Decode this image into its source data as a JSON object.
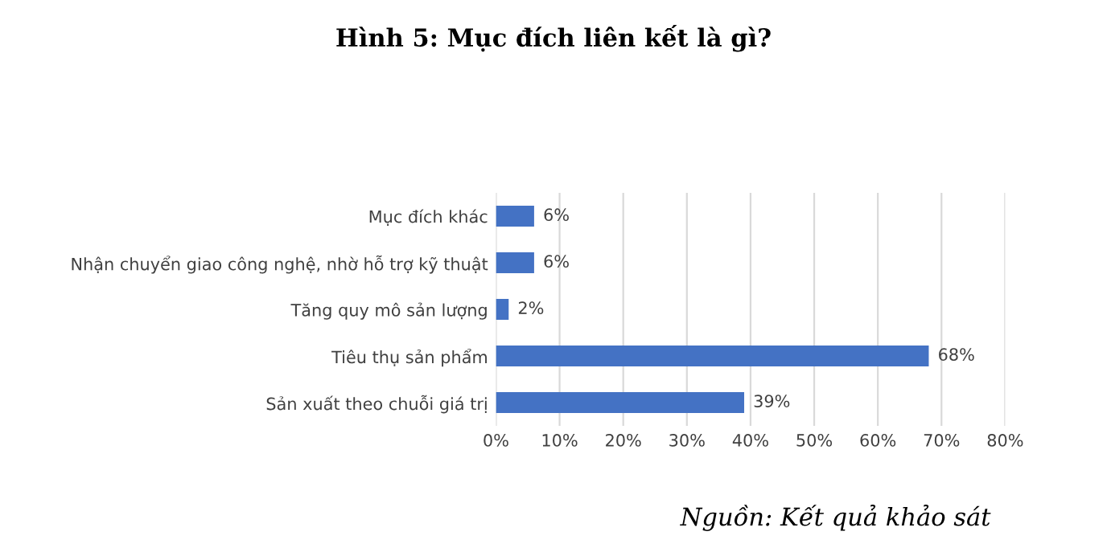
{
  "chart_data": {
    "type": "bar",
    "orientation": "horizontal",
    "title": "Hình 5: Mục đích liên kết là gì?",
    "categories": [
      "Mục đích khác",
      "Nhận chuyển giao công nghệ, nhờ hỗ trợ kỹ thuật",
      "Tăng quy mô sản lượng",
      "Tiêu thụ sản phẩm",
      "Sản xuất theo chuỗi giá trị"
    ],
    "values": [
      6,
      6,
      2,
      68,
      39
    ],
    "value_labels": [
      "6%",
      "6%",
      "2%",
      "68%",
      "39%"
    ],
    "color": "#4472c4",
    "xlim": [
      0,
      80
    ],
    "xticks": [
      {
        "value": 0,
        "label": "0%"
      },
      {
        "value": 10,
        "label": "10%"
      },
      {
        "value": 20,
        "label": "20%"
      },
      {
        "value": 30,
        "label": "30%"
      },
      {
        "value": 40,
        "label": "40%"
      },
      {
        "value": 50,
        "label": "50%"
      },
      {
        "value": 60,
        "label": "60%"
      },
      {
        "value": 70,
        "label": "70%"
      },
      {
        "value": 80,
        "label": "80%"
      }
    ],
    "grid": "x",
    "legend": false,
    "annotations": [
      "Nguồn: Kết quả khảo sát"
    ]
  }
}
